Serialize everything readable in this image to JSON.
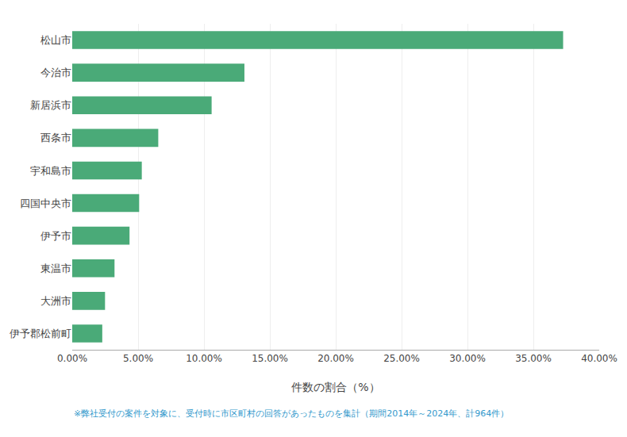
{
  "chart_data": {
    "type": "bar",
    "orientation": "horizontal",
    "categories": [
      "伊予郡松前町",
      "大洲市",
      "東温市",
      "伊予市",
      "四国中央市",
      "宇和島市",
      "西条市",
      "新居浜市",
      "今治市",
      "松山市"
    ],
    "values": [
      0.0228,
      0.0249,
      0.0321,
      0.0435,
      0.0508,
      0.0528,
      0.0653,
      0.1058,
      0.1307,
      0.3726
    ],
    "color": "#4aaa78",
    "x_label": "件数の割合（%）",
    "xlim": [
      0,
      0.4
    ],
    "xticks": [
      {
        "value": 0.0,
        "label": "0.00%"
      },
      {
        "value": 0.05,
        "label": "5.00%"
      },
      {
        "value": 0.1,
        "label": "10.00%"
      },
      {
        "value": 0.15,
        "label": "15.00%"
      },
      {
        "value": 0.2,
        "label": "20.00%"
      },
      {
        "value": 0.25,
        "label": "25.00%"
      },
      {
        "value": 0.3,
        "label": "30.00%"
      },
      {
        "value": 0.35,
        "label": "35.00%"
      },
      {
        "value": 0.4,
        "label": "40.00%"
      }
    ],
    "grid": true,
    "annotations": [
      {
        "text": "※弊社受付の案件を対象に、受付時に市区町村の回答があったものを集計（期間2014年～2024年、計964件）",
        "color": "#3399cc"
      }
    ]
  }
}
